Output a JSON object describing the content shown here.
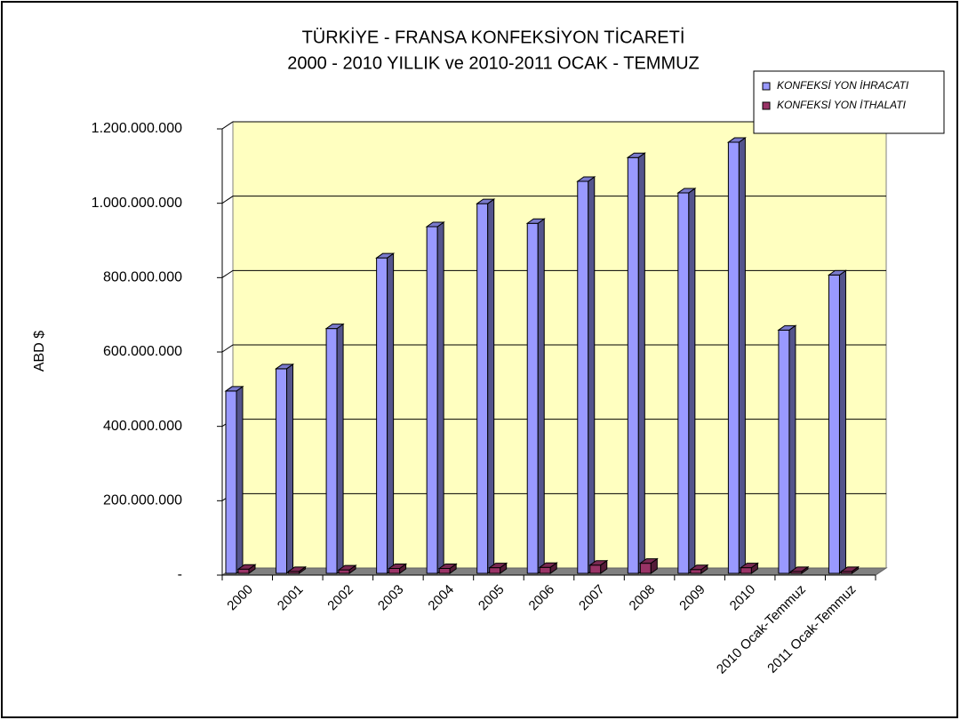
{
  "chart_data": {
    "type": "bar3d",
    "title": "TÜRKİYE - FRANSA KONFEKSİYON TİCARETİ",
    "subtitle": "2000 - 2010 YILLIK ve 2010-2011 OCAK - TEMMUZ",
    "y_label": "ABD $",
    "categories": [
      "2000",
      "2001",
      "2002",
      "2003",
      "2004",
      "2005",
      "2006",
      "2007",
      "2008",
      "2009",
      "2010",
      "2010 Ocak-Temmuz",
      "2011 Ocak-Temmuz"
    ],
    "series": [
      {
        "name": "KONFEKSİ YON İHRACATI",
        "color": "#9999ff",
        "values": [
          495000000,
          555000000,
          663000000,
          853000000,
          937000000,
          999000000,
          946000000,
          1059000000,
          1123000000,
          1028000000,
          1164000000,
          659000000,
          807000000
        ]
      },
      {
        "name": "KONFEKSİ YON İTHALATI",
        "color": "#993366",
        "values": [
          16000000,
          10000000,
          14000000,
          18000000,
          18000000,
          20000000,
          21000000,
          27000000,
          32000000,
          15000000,
          20000000,
          10000000,
          10000000
        ]
      }
    ],
    "ylim": [
      0,
      1200000000
    ],
    "yticks": [
      {
        "value": 0,
        "label": "-"
      },
      {
        "value": 200000000,
        "label": "200.000.000"
      },
      {
        "value": 400000000,
        "label": "400.000.000"
      },
      {
        "value": 600000000,
        "label": "600.000.000"
      },
      {
        "value": 800000000,
        "label": "800.000.000"
      },
      {
        "value": 1000000000,
        "label": "1.000.000.000"
      },
      {
        "value": 1200000000,
        "label": "1.200.000.000"
      }
    ],
    "grid": true,
    "legend": "top-right",
    "wall_color": "#ffffc0"
  }
}
